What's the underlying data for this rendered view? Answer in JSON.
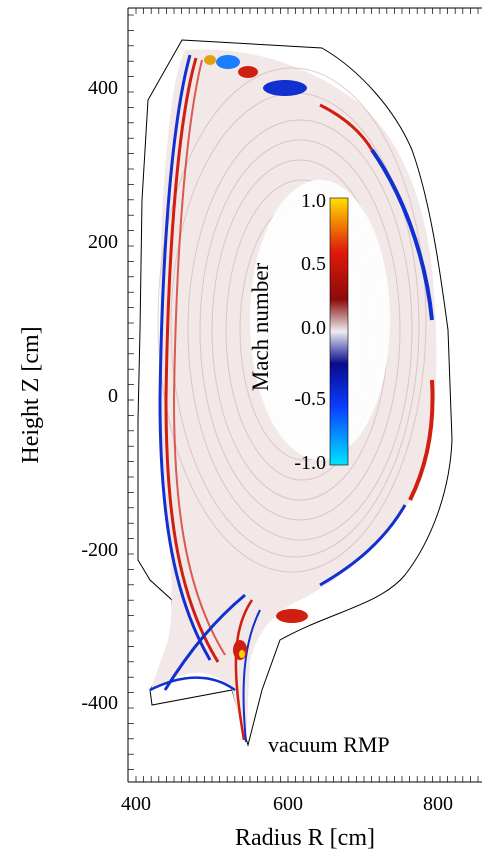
{
  "figure": {
    "xlabel": "Radius R [cm]",
    "ylabel": "Height Z [cm]",
    "annotation": "vacuum RMP",
    "x_ticks": [
      "400",
      "600",
      "800"
    ],
    "y_ticks": [
      "400",
      "200",
      "0",
      "-200",
      "-400"
    ],
    "xlim": [
      400,
      880
    ],
    "ylim": [
      -500,
      480
    ]
  },
  "colorbar": {
    "label": "Mach number",
    "ticks": [
      "1.0",
      "0.5",
      "0.0",
      "-0.5",
      "-1.0"
    ],
    "range": [
      -1.0,
      1.0
    ],
    "colors": [
      "#00e5ff",
      "#0a3cff",
      "#0a0a8c",
      "#e8e8f0",
      "#8c0a0a",
      "#e01a0a",
      "#ffe000"
    ]
  },
  "colors": {
    "positive": "#d01e10",
    "negative": "#1030d0",
    "background_flow": "#b08080",
    "boundary": "#000000"
  }
}
